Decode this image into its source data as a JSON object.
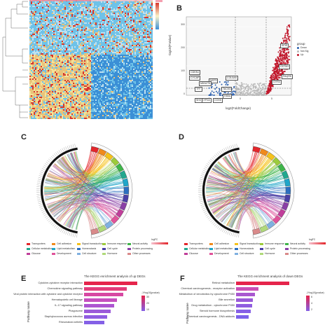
{
  "panels": {
    "B": {
      "label": "B"
    },
    "C": {
      "label": "C"
    },
    "D": {
      "label": "D"
    },
    "E": {
      "label": "E"
    },
    "F": {
      "label": "F"
    }
  },
  "heatmap": {
    "palette": [
      "#3b8fd6",
      "#c9dbe9",
      "#e9c37a",
      "#d7372f",
      "#6ec2e8",
      "#f4e39a"
    ]
  },
  "volcano": {
    "xlabel": "log2(FoldChange)",
    "ylabel": "-log10(P.Value)",
    "legend_title": "group",
    "legend_items": [
      {
        "label": "Down",
        "color": "#2b5fae"
      },
      {
        "label": "Not.Sig",
        "color": "#bbbbbb"
      },
      {
        "label": "Up",
        "color": "#c0162a"
      }
    ],
    "yticks": [
      "300",
      "200",
      "100",
      "0"
    ],
    "xticks": [
      "-5",
      "0",
      "5"
    ],
    "genes": [
      "CDKN1",
      "CYCAP",
      "NCF3",
      "COL5A5",
      "MKN2T5",
      "TFF",
      "SPIS",
      "GSTM1",
      "PAQR5",
      "GYR4",
      "TACK5",
      "COX5",
      "CYP2A",
      "SH3",
      "RB5A"
    ]
  },
  "chord_C": {
    "legend_title": "logFC",
    "legend_items": [
      "Transporters",
      "Cell adhesion",
      "Signal transduction",
      "Immune response",
      "Neural activity",
      "Cellular metabolism",
      "Lipid metabolism",
      "Homeostasis",
      "Cell cycle",
      "Protein processing",
      "Glucose",
      "Development",
      "Cell structure",
      "Hormone",
      "Other processes"
    ],
    "colors": [
      "#e3262b",
      "#f08a1c",
      "#f5c21b",
      "#9ccb3b",
      "#3fb54a",
      "#22a88f",
      "#1fa6c9",
      "#2c6fc0",
      "#4a3fa6",
      "#8a3fa6",
      "#c03e9a",
      "#e0539a",
      "#7fb0e0",
      "#b0d97a",
      "#d98a8a"
    ]
  },
  "chord_D": {
    "legend_title": "logFC",
    "legend_items": [
      "Transporters",
      "Cell adhesion",
      "Signal transduction",
      "Immune response",
      "Neural activity",
      "Cellular metabolism",
      "Lipid metabolism",
      "Homeostasis",
      "Cell cycle",
      "Protein processing",
      "Glucose",
      "Development",
      "Cell structure",
      "Hormone",
      "Other processes"
    ],
    "colors": [
      "#e3262b",
      "#f08a1c",
      "#f5c21b",
      "#9ccb3b",
      "#3fb54a",
      "#22a88f",
      "#1fa6c9",
      "#2c6fc0",
      "#4a3fa6",
      "#8a3fa6",
      "#c03e9a",
      "#e0539a",
      "#7fb0e0",
      "#b0d97a",
      "#d98a8a"
    ]
  },
  "bar_E": {
    "title": "The KEGG enrichment analysis of up DEGs",
    "ylabel": "Pathway name",
    "legend_title": "-1*log10(pvalue)",
    "legend_ticks": [
      "10",
      "20",
      "30"
    ],
    "items": [
      {
        "label": "Cytokine-cytokine receptor interaction",
        "value": 1.0,
        "color": "#e5244b"
      },
      {
        "label": "Chemokine signaling pathway",
        "value": 0.8,
        "color": "#e33d7a"
      },
      {
        "label": "Viral protein interaction with cytokine and cytokine receptor",
        "value": 0.74,
        "color": "#d748a2"
      },
      {
        "label": "Hematopoietic cell lineage",
        "value": 0.62,
        "color": "#c64fbe"
      },
      {
        "label": "IL-17 signaling pathway",
        "value": 0.56,
        "color": "#ad55d1"
      },
      {
        "label": "Phagosome",
        "value": 0.5,
        "color": "#9b5ad9"
      },
      {
        "label": "Staphylococcus aureus infection",
        "value": 0.44,
        "color": "#8f5de1"
      },
      {
        "label": "Rheumatoid arthritis",
        "value": 0.38,
        "color": "#8460e6"
      }
    ]
  },
  "bar_F": {
    "title": "The KEGG enrichment analysis of down DEGs",
    "ylabel": "Pathway name",
    "legend_title": "-1*log10(pvalue)",
    "legend_ticks": [
      "2",
      "4",
      "6"
    ],
    "items": [
      {
        "label": "Retinol metabolism",
        "value": 1.0,
        "color": "#e5244b"
      },
      {
        "label": "Chemical carcinogenesis - receptor activation",
        "value": 0.42,
        "color": "#c94fb6"
      },
      {
        "label": "Metabolism of xenobiotics by cytochrome P450",
        "value": 0.36,
        "color": "#a957d0"
      },
      {
        "label": "Bile secretion",
        "value": 0.32,
        "color": "#9a5ad8"
      },
      {
        "label": "Drug metabolism - cytochrome P450",
        "value": 0.3,
        "color": "#905de0"
      },
      {
        "label": "Steroid hormone biosynthesis",
        "value": 0.27,
        "color": "#8660e6"
      },
      {
        "label": "Chemical carcinogenesis - DNA adducts",
        "value": 0.24,
        "color": "#7c62ea"
      }
    ]
  }
}
